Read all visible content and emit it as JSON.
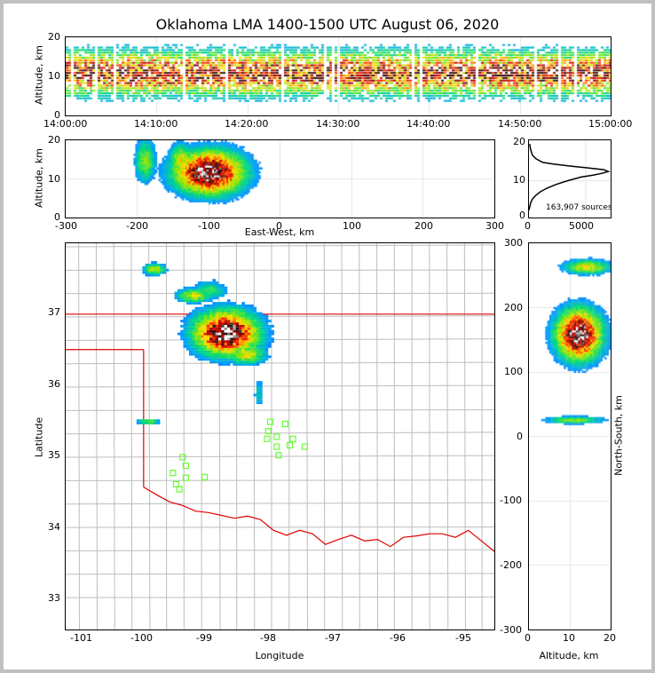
{
  "chart_data": [
    {
      "id": "altitude-time",
      "type": "heatmap",
      "title": "Oklahoma LMA 1400-1500 UTC August 06, 2020",
      "xlabel": "",
      "ylabel": "Altitude, km",
      "xticks": [
        "14:00:00",
        "14:10:00",
        "14:20:00",
        "14:30:00",
        "14:40:00",
        "14:50:00",
        "15:00:00"
      ],
      "yticks": [
        "0",
        "10",
        "20"
      ],
      "ylim": [
        0,
        20
      ],
      "band_center_km": 11,
      "band_halfwidth_km": 7
    },
    {
      "id": "ew-altitude",
      "type": "heatmap",
      "xlabel": "East-West, km",
      "ylabel": "Altitude, km",
      "xticks": [
        "-300",
        "-200",
        "-100",
        "0",
        "100",
        "200",
        "300"
      ],
      "yticks": [
        "0",
        "10",
        "20"
      ],
      "xlim": [
        -300,
        300
      ],
      "ylim": [
        0,
        20
      ],
      "blobs": [
        {
          "x": -100,
          "alt": 12,
          "sx": 35,
          "sa": 4,
          "peak": 1.0
        },
        {
          "x": -190,
          "alt": 15,
          "sx": 10,
          "sa": 4,
          "peak": 0.45
        },
        {
          "x": -140,
          "alt": 15,
          "sx": 12,
          "sa": 3,
          "peak": 0.55
        }
      ]
    },
    {
      "id": "altitude-histogram",
      "type": "line",
      "annotation": "163,907 sources",
      "xticks": [
        "0",
        "5000"
      ],
      "yticks": [
        "0",
        "10",
        "20"
      ],
      "xlim": [
        0,
        7200
      ],
      "ylim": [
        0,
        21
      ],
      "x": [
        0,
        150,
        300,
        600,
        1000,
        1600,
        2400,
        3400,
        4600,
        5600,
        6400,
        7000,
        6600,
        5200,
        3600,
        2200,
        1200,
        600,
        300,
        150,
        60
      ],
      "y": [
        2,
        4,
        5,
        6,
        7,
        8,
        9,
        10,
        11,
        11.5,
        12,
        12.5,
        13,
        13.5,
        14,
        14.5,
        15,
        16,
        17,
        18.5,
        20
      ]
    },
    {
      "id": "plan-view-map",
      "type": "heatmap",
      "xlabel": "Longitude",
      "ylabel": "Latitude",
      "xticks": [
        "-101",
        "-100",
        "-99",
        "-98",
        "-97",
        "-96",
        "-95"
      ],
      "yticks": [
        "33",
        "34",
        "35",
        "36",
        "37"
      ],
      "xlim": [
        -101.2,
        -94.6
      ],
      "ylim": [
        32.55,
        38.0
      ],
      "stations": [
        [
          -98.05,
          35.48
        ],
        [
          -97.82,
          35.45
        ],
        [
          -98.08,
          35.35
        ],
        [
          -97.95,
          35.27
        ],
        [
          -98.1,
          35.24
        ],
        [
          -97.7,
          35.24
        ],
        [
          -97.75,
          35.15
        ],
        [
          -97.95,
          35.13
        ],
        [
          -97.52,
          35.13
        ],
        [
          -97.92,
          35.01
        ],
        [
          -99.4,
          34.98
        ],
        [
          -99.35,
          34.86
        ],
        [
          -99.55,
          34.76
        ],
        [
          -99.35,
          34.69
        ],
        [
          -99.06,
          34.7
        ],
        [
          -99.5,
          34.6
        ],
        [
          -99.45,
          34.53
        ]
      ],
      "blobs": [
        {
          "lon": -98.75,
          "lat": 36.75,
          "slon": 0.35,
          "slat": 0.22,
          "peak": 1.0
        },
        {
          "lon": -98.45,
          "lat": 36.45,
          "slon": 0.22,
          "slat": 0.1,
          "peak": 0.55
        },
        {
          "lon": -99.25,
          "lat": 37.28,
          "slon": 0.18,
          "slat": 0.07,
          "peak": 0.55
        },
        {
          "lon": -99.0,
          "lat": 37.35,
          "slon": 0.18,
          "slat": 0.1,
          "peak": 0.35
        },
        {
          "lon": -99.85,
          "lat": 37.65,
          "slon": 0.12,
          "slat": 0.06,
          "peak": 0.5
        },
        {
          "lon": -99.95,
          "lat": 35.5,
          "slon": 0.12,
          "slat": 0.03,
          "peak": 0.45
        },
        {
          "lon": -98.25,
          "lat": 35.9,
          "slon": 0.05,
          "slat": 0.15,
          "peak": 0.25
        }
      ]
    },
    {
      "id": "ns-altitude",
      "type": "heatmap",
      "xlabel": "Altitude, km",
      "ylabel": "North-South, km",
      "xticks": [
        "0",
        "10",
        "20"
      ],
      "yticks": [
        "-300",
        "-200",
        "-100",
        "0",
        "100",
        "200",
        "300"
      ],
      "xlim": [
        0,
        20
      ],
      "ylim": [
        -300,
        300
      ],
      "blobs": [
        {
          "alt": 12,
          "ns": 160,
          "sa": 4,
          "sn": 28,
          "peak": 1.0
        },
        {
          "alt": 14,
          "ns": 265,
          "sa": 4,
          "sn": 8,
          "peak": 0.55
        },
        {
          "alt": 11,
          "ns": 27,
          "sa": 5,
          "sn": 4,
          "peak": 0.45
        }
      ]
    }
  ],
  "colors": {
    "border_red": "#e00000",
    "county_gray": "#bdbdbd",
    "station_green": "#66ff33",
    "histogram_line": "#000000"
  }
}
